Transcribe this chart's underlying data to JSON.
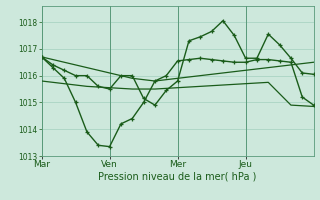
{
  "xlabel": "Pression niveau de la mer( hPa )",
  "background_color": "#cde8dc",
  "grid_color": "#aad4c4",
  "line_color_dark": "#1a5c1a",
  "line_color_mid": "#2d7a2d",
  "ylim": [
    1013.0,
    1018.6
  ],
  "yticks": [
    1013,
    1014,
    1015,
    1016,
    1017,
    1018
  ],
  "xtick_labels": [
    "Mar",
    "Ven",
    "Mer",
    "Jeu"
  ],
  "xtick_positions": [
    0,
    30,
    60,
    90
  ],
  "total_steps": 120,
  "series_smooth1_x": [
    0,
    5,
    10,
    15,
    20,
    25,
    30,
    35,
    40,
    45,
    50,
    55,
    60,
    65,
    70,
    75,
    80,
    85,
    90,
    95,
    100,
    105,
    110,
    115,
    120
  ],
  "series_smooth1_y": [
    1016.7,
    1016.6,
    1016.5,
    1016.4,
    1016.3,
    1016.2,
    1016.1,
    1016.0,
    1015.9,
    1015.85,
    1015.8,
    1015.85,
    1015.9,
    1015.95,
    1016.0,
    1016.05,
    1016.1,
    1016.15,
    1016.2,
    1016.25,
    1016.3,
    1016.35,
    1016.4,
    1016.45,
    1016.5
  ],
  "series_smooth2_x": [
    0,
    10,
    20,
    30,
    40,
    50,
    60,
    70,
    80,
    90,
    100,
    110,
    120
  ],
  "series_smooth2_y": [
    1015.8,
    1015.7,
    1015.6,
    1015.55,
    1015.5,
    1015.5,
    1015.55,
    1015.6,
    1015.65,
    1015.7,
    1015.75,
    1014.9,
    1014.85
  ],
  "series_var1_x": [
    0,
    5,
    10,
    15,
    20,
    25,
    30,
    35,
    40,
    45,
    50,
    55,
    60,
    65,
    70,
    75,
    80,
    85,
    90,
    95,
    100,
    105,
    110,
    115,
    120
  ],
  "series_var1_y": [
    1016.7,
    1016.3,
    1015.9,
    1015.0,
    1013.9,
    1013.4,
    1013.35,
    1014.2,
    1014.4,
    1015.0,
    1015.8,
    1016.0,
    1016.55,
    1016.6,
    1016.65,
    1016.6,
    1016.55,
    1016.5,
    1016.5,
    1016.6,
    1016.6,
    1016.55,
    1016.5,
    1015.2,
    1014.9
  ],
  "series_var2_x": [
    0,
    5,
    10,
    15,
    20,
    25,
    30,
    35,
    40,
    45,
    50,
    55,
    60,
    65,
    70,
    75,
    80,
    85,
    90,
    95,
    100,
    105,
    110,
    115,
    120
  ],
  "series_var2_y": [
    1016.7,
    1016.4,
    1016.2,
    1016.0,
    1016.0,
    1015.6,
    1015.5,
    1016.0,
    1016.0,
    1015.15,
    1014.9,
    1015.45,
    1015.8,
    1017.3,
    1017.45,
    1017.65,
    1018.05,
    1017.5,
    1016.65,
    1016.65,
    1017.55,
    1017.15,
    1016.65,
    1016.1,
    1016.05
  ]
}
